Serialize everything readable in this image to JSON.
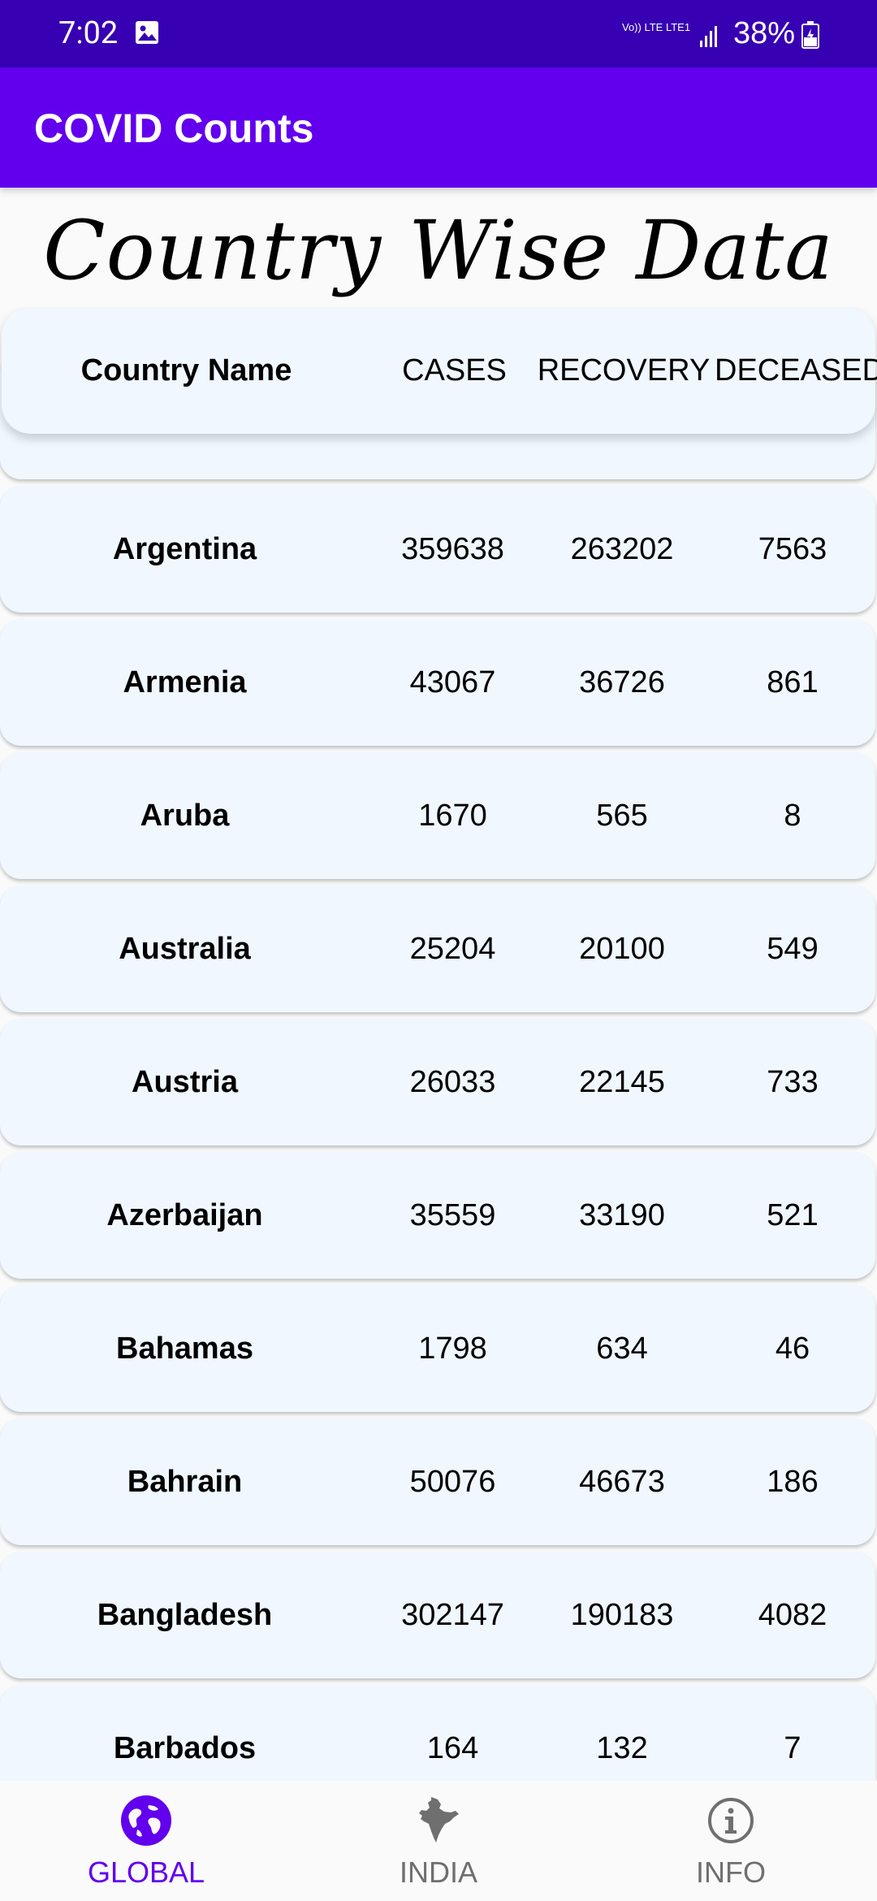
{
  "status_bar": {
    "time": "7:02",
    "network_label": "Vo)) LTE LTE1",
    "battery": "38%"
  },
  "app_bar": {
    "title": "COVID Counts"
  },
  "page": {
    "heading": "Country Wise Data"
  },
  "table": {
    "headers": {
      "country": "Country Name",
      "cases": "CASES",
      "recovery": "RECOVERY",
      "deceased": "DECEASED"
    },
    "rows": [
      {
        "country": "Argentina",
        "cases": "359638",
        "recovery": "263202",
        "deceased": "7563"
      },
      {
        "country": "Armenia",
        "cases": "43067",
        "recovery": "36726",
        "deceased": "861"
      },
      {
        "country": "Aruba",
        "cases": "1670",
        "recovery": "565",
        "deceased": "8"
      },
      {
        "country": "Australia",
        "cases": "25204",
        "recovery": "20100",
        "deceased": "549"
      },
      {
        "country": "Austria",
        "cases": "26033",
        "recovery": "22145",
        "deceased": "733"
      },
      {
        "country": "Azerbaijan",
        "cases": "35559",
        "recovery": "33190",
        "deceased": "521"
      },
      {
        "country": "Bahamas",
        "cases": "1798",
        "recovery": "634",
        "deceased": "46"
      },
      {
        "country": "Bahrain",
        "cases": "50076",
        "recovery": "46673",
        "deceased": "186"
      },
      {
        "country": "Bangladesh",
        "cases": "302147",
        "recovery": "190183",
        "deceased": "4082"
      },
      {
        "country": "Barbados",
        "cases": "164",
        "recovery": "132",
        "deceased": "7"
      }
    ]
  },
  "bottom_nav": {
    "items": [
      {
        "label": "GLOBAL",
        "icon": "globe-icon",
        "active": true
      },
      {
        "label": "INDIA",
        "icon": "india-map-icon",
        "active": false
      },
      {
        "label": "INFO",
        "icon": "info-icon",
        "active": false
      }
    ]
  },
  "colors": {
    "status_bar": "#3700b3",
    "app_bar": "#6200ee",
    "card": "#f0f7ff",
    "active_nav": "#6200ee",
    "inactive_nav": "#6f6f6f"
  }
}
